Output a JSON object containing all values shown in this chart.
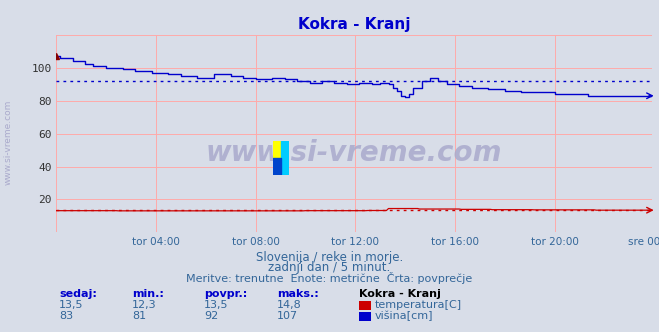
{
  "title": "Kokra - Kranj",
  "title_color": "#0000cc",
  "bg_color": "#d8dde8",
  "plot_bg_color": "#d8dde8",
  "xlim": [
    0,
    287
  ],
  "ylim": [
    0,
    120
  ],
  "yticks": [
    20,
    40,
    60,
    80,
    100
  ],
  "xtick_labels": [
    "tor 04:00",
    "tor 08:00",
    "tor 12:00",
    "tor 16:00",
    "tor 20:00",
    "sre 00:00"
  ],
  "xtick_positions": [
    48,
    96,
    144,
    192,
    240,
    287
  ],
  "temp_color": "#cc0000",
  "height_color": "#0000cc",
  "avg_temp": 13.5,
  "avg_height": 92,
  "temp_min": "12,3",
  "temp_max": "14,8",
  "temp_current": "13,5",
  "height_min": "81",
  "height_max": "107",
  "height_current": "83",
  "height_avg_str": "92",
  "temp_avg_str": "13,5",
  "watermark": "www.si-vreme.com",
  "subtitle1": "Slovenija / reke in morje.",
  "subtitle2": "zadnji dan / 5 minut.",
  "subtitle3": "Meritve: trenutne  Enote: metrične  Črta: povprečje",
  "legend_title": "Kokra - Kranj",
  "label_temp": "temperatura[C]",
  "label_height": "višina[cm]",
  "side_label": "www.si-vreme.com",
  "grid_color": "#ffaaaa",
  "dot_color_height": "#0000cc",
  "dot_color_temp": "#cc0000"
}
